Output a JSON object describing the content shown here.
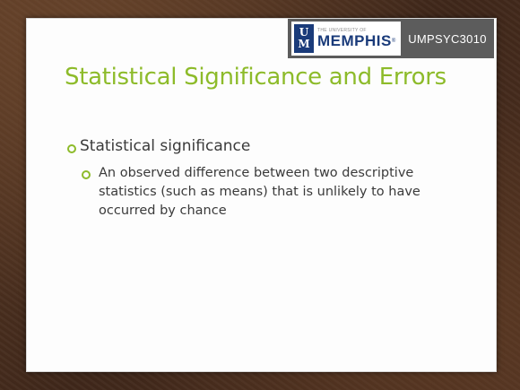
{
  "header": {
    "logo_small_text": "THE UNIVERSITY OF",
    "logo_main_text": "MEMPHIS",
    "logo_mark_letters": [
      "U",
      "M"
    ],
    "course_code": "UMPSYC3010"
  },
  "slide": {
    "title": "Statistical Significance and Errors",
    "bullets": [
      {
        "text": "Statistical significance",
        "sub_bullets": [
          "An observed difference between two descriptive statistics (such as means) that is unlikely to have occurred by chance"
        ]
      }
    ]
  },
  "colors": {
    "accent_green": "#8dbb2a",
    "header_bar": "#5c5c5c",
    "memphis_blue": "#1a3b7a",
    "frame_brown": "#4a2f1f"
  }
}
